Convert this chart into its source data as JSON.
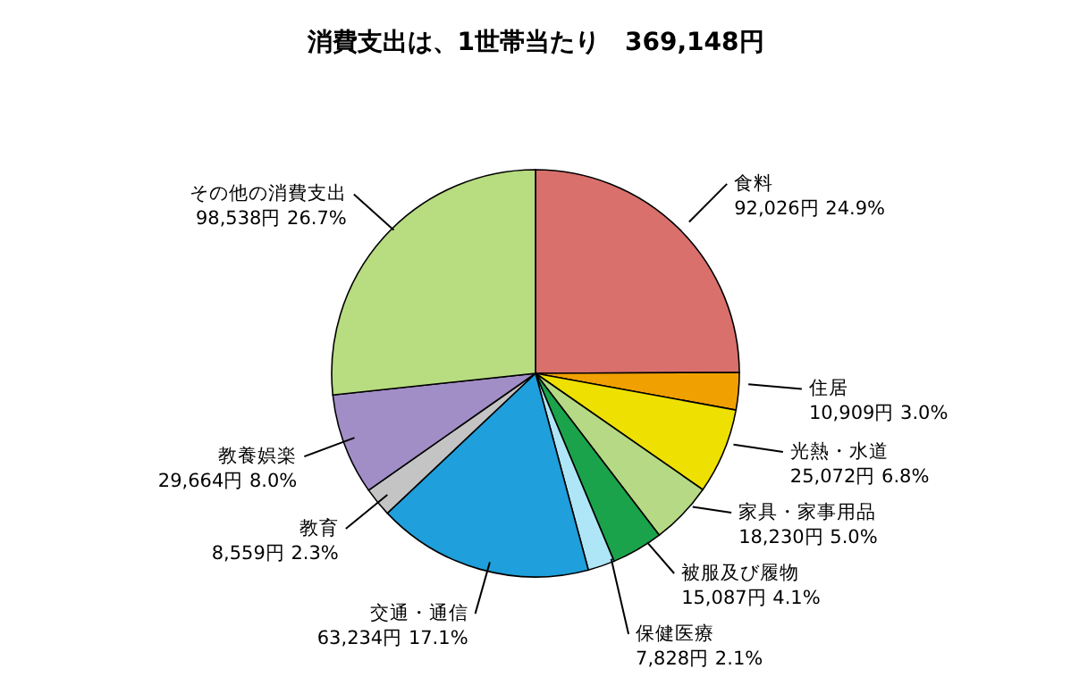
{
  "chart_data": {
    "type": "pie",
    "title": "消費支出は、1世帯当たり　369,148円",
    "categories": [
      "食料",
      "住居",
      "光熱・水道",
      "家具・家事用品",
      "被服及び履物",
      "保健医療",
      "交通・通信",
      "教育",
      "教養娯楽",
      "その他の消費支出"
    ],
    "values": [
      92026,
      10909,
      25072,
      18230,
      15087,
      7828,
      63234,
      8559,
      29664,
      98538
    ],
    "value_labels": [
      "92,026円 24.9%",
      "10,909円 3.0%",
      "25,072円 6.8%",
      "18,230円 5.0%",
      "15,087円 4.1%",
      "7,828円 2.1%",
      "63,234円 17.1%",
      "8,559円 2.3%",
      "29,664円 8.0%",
      "98,538円 26.7%"
    ],
    "colors": [
      "#d9706b",
      "#f0a000",
      "#eee000",
      "#b5d985",
      "#1aa34a",
      "#aee6f7",
      "#1f9fdb",
      "#c4c4c4",
      "#a28ec6",
      "#b8dc80"
    ]
  }
}
